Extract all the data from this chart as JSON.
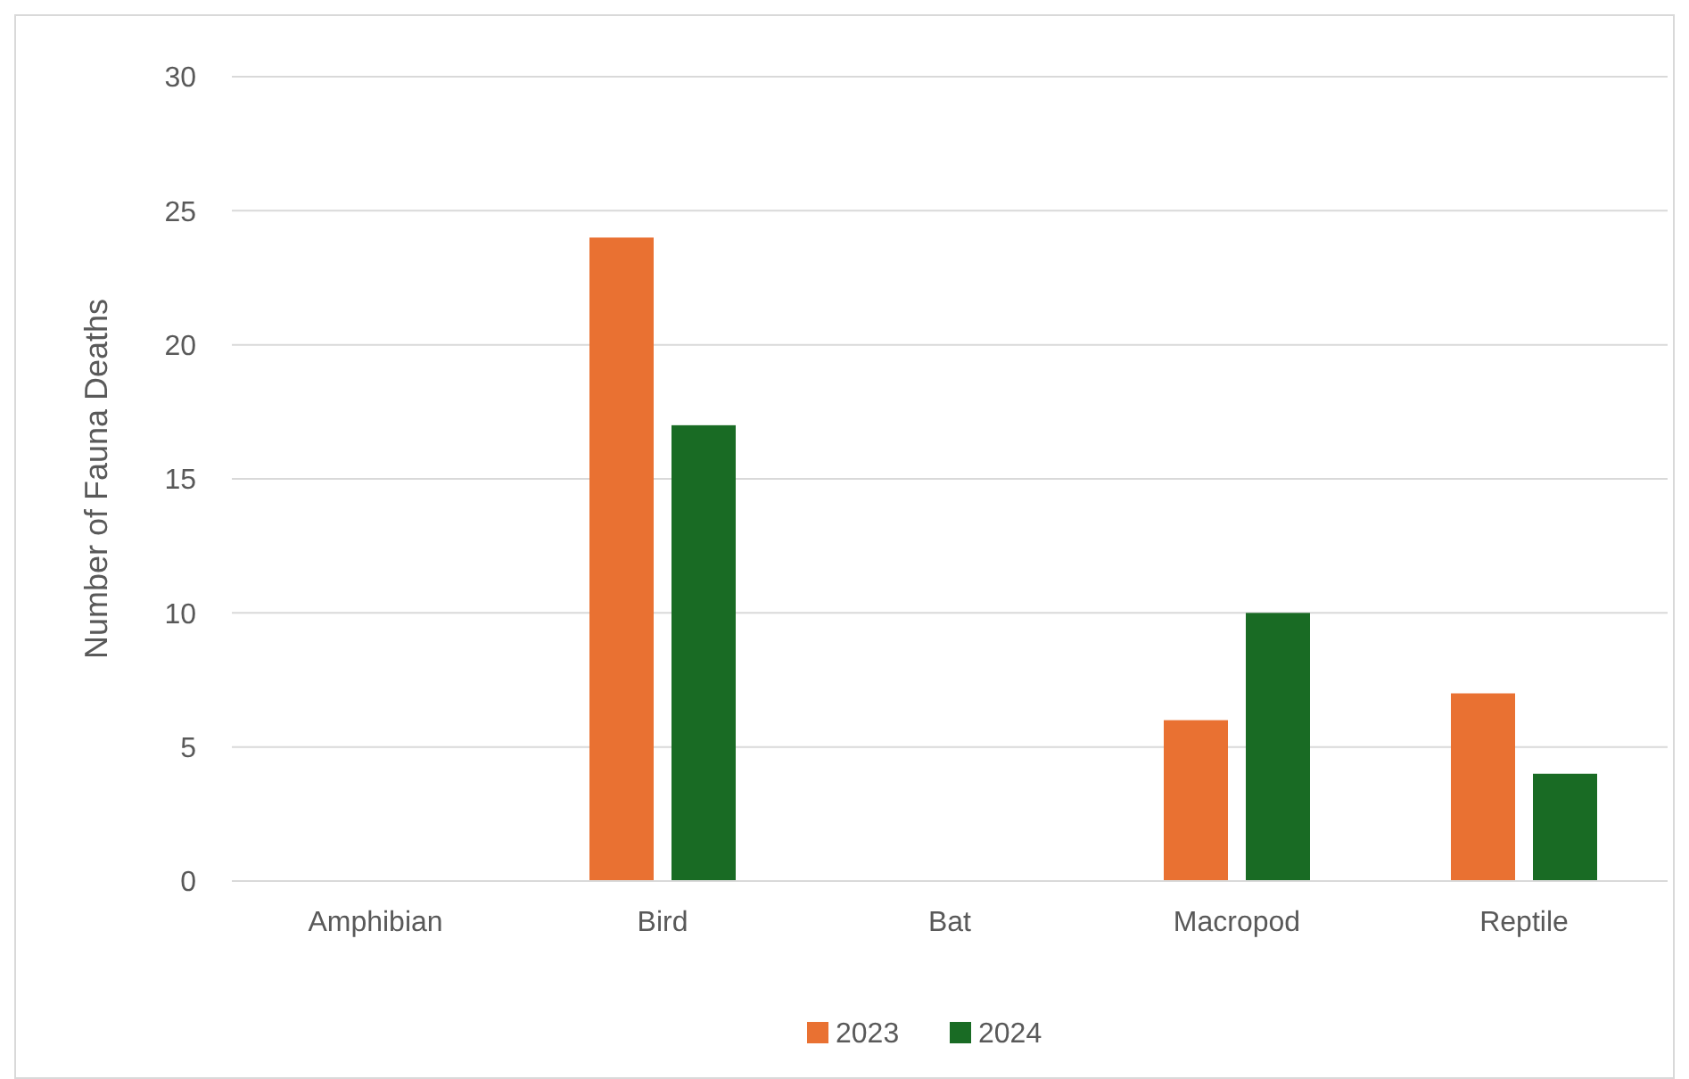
{
  "chart_data": {
    "type": "bar",
    "ylabel": "Number of Fauna Deaths",
    "categories": [
      "Amphibian",
      "Bird",
      "Bat",
      "Macropod",
      "Reptile"
    ],
    "series": [
      {
        "name": "2023",
        "color": "#e97132",
        "values": [
          0,
          24,
          0,
          6,
          7
        ]
      },
      {
        "name": "2024",
        "color": "#196b24",
        "values": [
          0,
          17,
          0,
          10,
          4
        ]
      }
    ],
    "ylim": [
      0,
      30
    ],
    "yticks": [
      0,
      5,
      10,
      15,
      20,
      25,
      30
    ],
    "grid": "y",
    "legend": "bottom"
  }
}
